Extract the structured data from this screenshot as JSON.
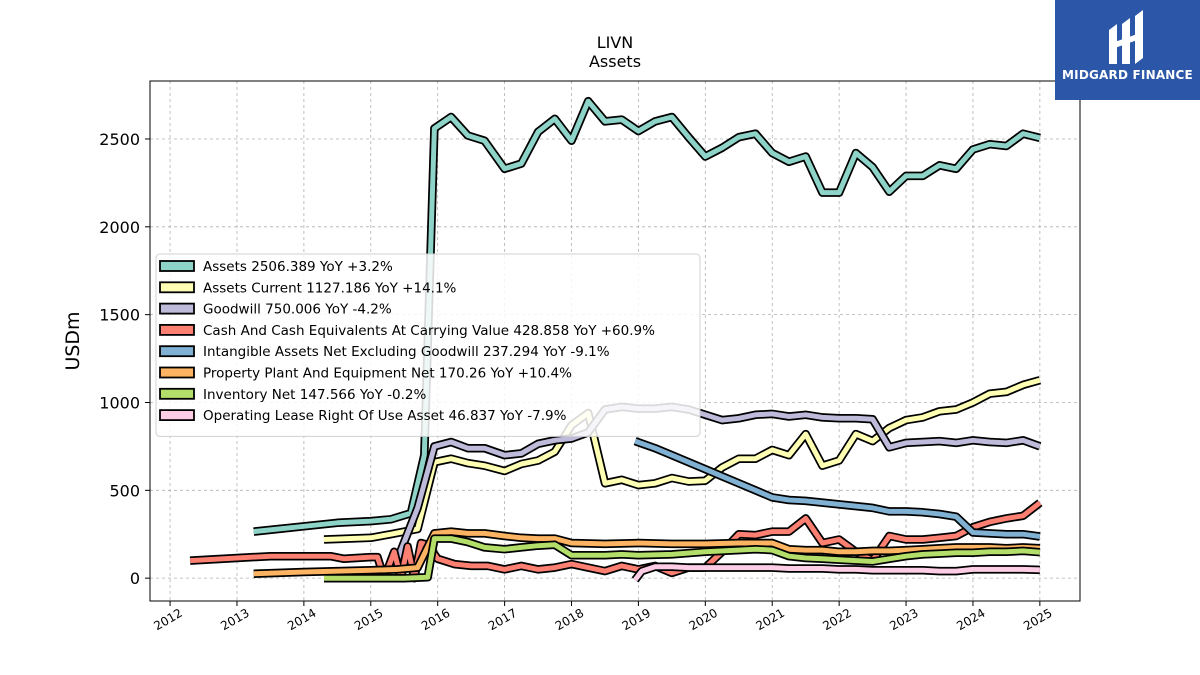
{
  "chart_data": {
    "type": "line",
    "title": "LIVN",
    "subtitle": "Assets",
    "xlabel": "",
    "ylabel": "USDm",
    "xlim": [
      2011.7,
      2025.6
    ],
    "ylim": [
      -130,
      2830
    ],
    "x_ticks": [
      2012,
      2013,
      2014,
      2015,
      2016,
      2017,
      2018,
      2019,
      2020,
      2021,
      2022,
      2023,
      2024,
      2025
    ],
    "y_ticks": [
      0,
      500,
      1000,
      1500,
      2000,
      2500
    ],
    "grid": true,
    "legend_placement": "center-left",
    "series": [
      {
        "name": "Assets",
        "legend": "Assets  2506.389 YoY +3.2%",
        "color": "#8dd3c7",
        "x": [
          2013.25,
          2014.0,
          2014.5,
          2015.0,
          2015.3,
          2015.6,
          2015.8,
          2015.95,
          2016.2,
          2016.45,
          2016.7,
          2017.0,
          2017.25,
          2017.5,
          2017.75,
          2018.0,
          2018.25,
          2018.5,
          2018.75,
          2019.0,
          2019.25,
          2019.5,
          2019.75,
          2020.0,
          2020.25,
          2020.5,
          2020.75,
          2021.0,
          2021.25,
          2021.5,
          2021.75,
          2022.0,
          2022.25,
          2022.5,
          2022.75,
          2023.0,
          2023.25,
          2023.5,
          2023.75,
          2024.0,
          2024.25,
          2024.5,
          2024.75,
          2025.0
        ],
        "y": [
          265,
          295,
          315,
          325,
          335,
          370,
          700,
          2560,
          2625,
          2520,
          2490,
          2330,
          2360,
          2540,
          2615,
          2490,
          2715,
          2600,
          2610,
          2545,
          2600,
          2625,
          2510,
          2400,
          2450,
          2510,
          2530,
          2420,
          2370,
          2400,
          2195,
          2195,
          2420,
          2340,
          2200,
          2290,
          2290,
          2350,
          2330,
          2440,
          2470,
          2460,
          2530,
          2506
        ]
      },
      {
        "name": "Assets Current",
        "legend": "Assets Current  1127.186 YoY +14.1%",
        "color": "#ffffb3",
        "x": [
          2014.3,
          2015.0,
          2015.3,
          2015.7,
          2015.95,
          2016.2,
          2016.45,
          2016.7,
          2017.0,
          2017.25,
          2017.5,
          2017.75,
          2018.0,
          2018.25,
          2018.5,
          2018.75,
          2019.0,
          2019.25,
          2019.5,
          2019.75,
          2020.0,
          2020.25,
          2020.5,
          2020.75,
          2021.0,
          2021.25,
          2021.5,
          2021.75,
          2022.0,
          2022.25,
          2022.5,
          2022.75,
          2023.0,
          2023.25,
          2023.5,
          2023.75,
          2024.0,
          2024.25,
          2024.5,
          2024.75,
          2025.0
        ],
        "y": [
          220,
          230,
          250,
          280,
          660,
          680,
          655,
          640,
          610,
          650,
          670,
          720,
          870,
          940,
          540,
          560,
          530,
          540,
          570,
          550,
          555,
          630,
          680,
          680,
          730,
          700,
          820,
          640,
          670,
          820,
          780,
          855,
          900,
          915,
          950,
          960,
          1000,
          1050,
          1060,
          1100,
          1127
        ]
      },
      {
        "name": "Goodwill",
        "legend": "Goodwill  750.006 YoY -4.2%",
        "color": "#bebada",
        "x": [
          2015.4,
          2015.7,
          2015.95,
          2016.2,
          2016.45,
          2016.7,
          2017.0,
          2017.25,
          2017.5,
          2017.75,
          2018.0,
          2018.25,
          2018.5,
          2018.75,
          2019.0,
          2019.25,
          2019.5,
          2019.75,
          2020.0,
          2020.25,
          2020.5,
          2020.75,
          2021.0,
          2021.25,
          2021.5,
          2021.75,
          2022.0,
          2022.25,
          2022.5,
          2022.75,
          2023.0,
          2023.25,
          2023.5,
          2023.75,
          2024.0,
          2024.25,
          2024.5,
          2024.75,
          2025.0
        ],
        "y": [
          110,
          400,
          750,
          775,
          740,
          740,
          700,
          710,
          765,
          785,
          795,
          830,
          960,
          975,
          965,
          965,
          975,
          960,
          930,
          900,
          910,
          930,
          935,
          920,
          930,
          915,
          910,
          910,
          905,
          745,
          770,
          775,
          780,
          770,
          785,
          775,
          770,
          785,
          750
        ]
      },
      {
        "name": "Cash And Cash Equivalents At Carrying Value",
        "legend": "Cash And Cash Equivalents At Carrying Value  428.858 YoY +60.9%",
        "color": "#fb8072",
        "x": [
          2012.3,
          2013.0,
          2013.5,
          2014.0,
          2014.4,
          2014.6,
          2015.0,
          2015.1,
          2015.2,
          2015.35,
          2015.45,
          2015.55,
          2015.65,
          2015.75,
          2015.85,
          2016.0,
          2016.25,
          2016.5,
          2016.75,
          2017.0,
          2017.25,
          2017.5,
          2017.75,
          2018.0,
          2018.25,
          2018.5,
          2018.75,
          2019.0,
          2019.25,
          2019.5,
          2019.75,
          2020.0,
          2020.25,
          2020.5,
          2020.75,
          2021.0,
          2021.25,
          2021.5,
          2021.75,
          2022.0,
          2022.25,
          2022.5,
          2022.75,
          2023.0,
          2023.25,
          2023.5,
          2023.75,
          2024.0,
          2024.25,
          2024.5,
          2024.75,
          2025.0
        ],
        "y": [
          100,
          115,
          125,
          125,
          125,
          110,
          120,
          120,
          0,
          150,
          0,
          180,
          0,
          200,
          190,
          110,
          80,
          70,
          70,
          50,
          70,
          50,
          60,
          80,
          60,
          40,
          70,
          50,
          70,
          30,
          60,
          60,
          150,
          250,
          245,
          265,
          265,
          340,
          200,
          220,
          150,
          100,
          240,
          220,
          220,
          230,
          240,
          290,
          320,
          340,
          355,
          429
        ]
      },
      {
        "name": "Intangible Assets Net Excluding Goodwill",
        "legend": "Intangible Assets Net Excluding Goodwill  237.294 YoY -9.1%",
        "color": "#80b1d3",
        "x": [
          2018.95,
          2019.25,
          2019.5,
          2019.75,
          2020.0,
          2020.25,
          2020.5,
          2020.75,
          2021.0,
          2021.25,
          2021.5,
          2021.75,
          2022.0,
          2022.25,
          2022.5,
          2022.75,
          2023.0,
          2023.25,
          2023.5,
          2023.75,
          2024.0,
          2024.25,
          2024.5,
          2024.75,
          2025.0
        ],
        "y": [
          780,
          740,
          700,
          660,
          620,
          580,
          540,
          500,
          460,
          445,
          440,
          430,
          420,
          410,
          400,
          380,
          380,
          375,
          365,
          350,
          260,
          255,
          250,
          250,
          237
        ]
      },
      {
        "name": "Property Plant And Equipment Net",
        "legend": "Property Plant And Equipment Net  170.26 YoY +10.4%",
        "color": "#fdb462",
        "x": [
          2013.25,
          2014.0,
          2014.5,
          2015.0,
          2015.4,
          2015.7,
          2015.95,
          2016.2,
          2016.45,
          2016.7,
          2017.0,
          2017.25,
          2017.5,
          2017.75,
          2018.0,
          2018.5,
          2019.0,
          2019.5,
          2020.0,
          2020.5,
          2020.75,
          2021.0,
          2021.25,
          2021.5,
          2021.75,
          2022.0,
          2022.25,
          2022.5,
          2022.75,
          2023.0,
          2023.25,
          2023.5,
          2023.75,
          2024.0,
          2024.25,
          2024.5,
          2024.75,
          2025.0
        ],
        "y": [
          25,
          35,
          40,
          45,
          50,
          60,
          255,
          265,
          255,
          255,
          240,
          230,
          225,
          225,
          200,
          195,
          200,
          195,
          195,
          200,
          200,
          200,
          165,
          160,
          160,
          150,
          150,
          155,
          155,
          160,
          165,
          170,
          175,
          175,
          175,
          170,
          175,
          170
        ]
      },
      {
        "name": "Inventory Net",
        "legend": "Inventory Net  147.566 YoY -0.2%",
        "color": "#b3de69",
        "x": [
          2014.3,
          2015.0,
          2015.5,
          2015.85,
          2015.95,
          2016.2,
          2016.45,
          2016.7,
          2017.0,
          2017.25,
          2017.5,
          2017.75,
          2018.0,
          2018.25,
          2018.5,
          2018.75,
          2019.0,
          2019.5,
          2020.0,
          2020.5,
          2020.75,
          2021.0,
          2021.25,
          2021.5,
          2021.75,
          2022.0,
          2022.25,
          2022.5,
          2022.75,
          2023.0,
          2023.25,
          2023.5,
          2023.75,
          2024.0,
          2024.25,
          2024.5,
          2024.75,
          2025.0
        ],
        "y": [
          0,
          0,
          0,
          5,
          225,
          225,
          205,
          175,
          165,
          175,
          185,
          190,
          130,
          130,
          130,
          135,
          130,
          135,
          150,
          160,
          165,
          160,
          125,
          115,
          110,
          105,
          100,
          95,
          110,
          125,
          135,
          140,
          145,
          145,
          150,
          150,
          155,
          148
        ]
      },
      {
        "name": "Operating Lease Right Of Use Asset",
        "legend": "Operating Lease Right Of Use Asset  46.837 YoY -7.9%",
        "color": "#fccde5",
        "x": [
          2018.95,
          2019.05,
          2019.25,
          2019.5,
          2019.75,
          2020.0,
          2020.25,
          2020.5,
          2020.75,
          2021.0,
          2021.25,
          2021.5,
          2021.75,
          2022.0,
          2022.25,
          2022.5,
          2022.75,
          2023.0,
          2023.25,
          2023.5,
          2023.75,
          2024.0,
          2024.25,
          2024.5,
          2024.75,
          2025.0
        ],
        "y": [
          -10,
          40,
          65,
          65,
          60,
          60,
          60,
          60,
          60,
          60,
          55,
          55,
          55,
          50,
          50,
          45,
          45,
          45,
          45,
          40,
          40,
          50,
          50,
          50,
          50,
          47
        ]
      }
    ]
  },
  "branding": {
    "logo_text": "MIDGARD FINANCE",
    "logo_color": "#2c57a8"
  }
}
